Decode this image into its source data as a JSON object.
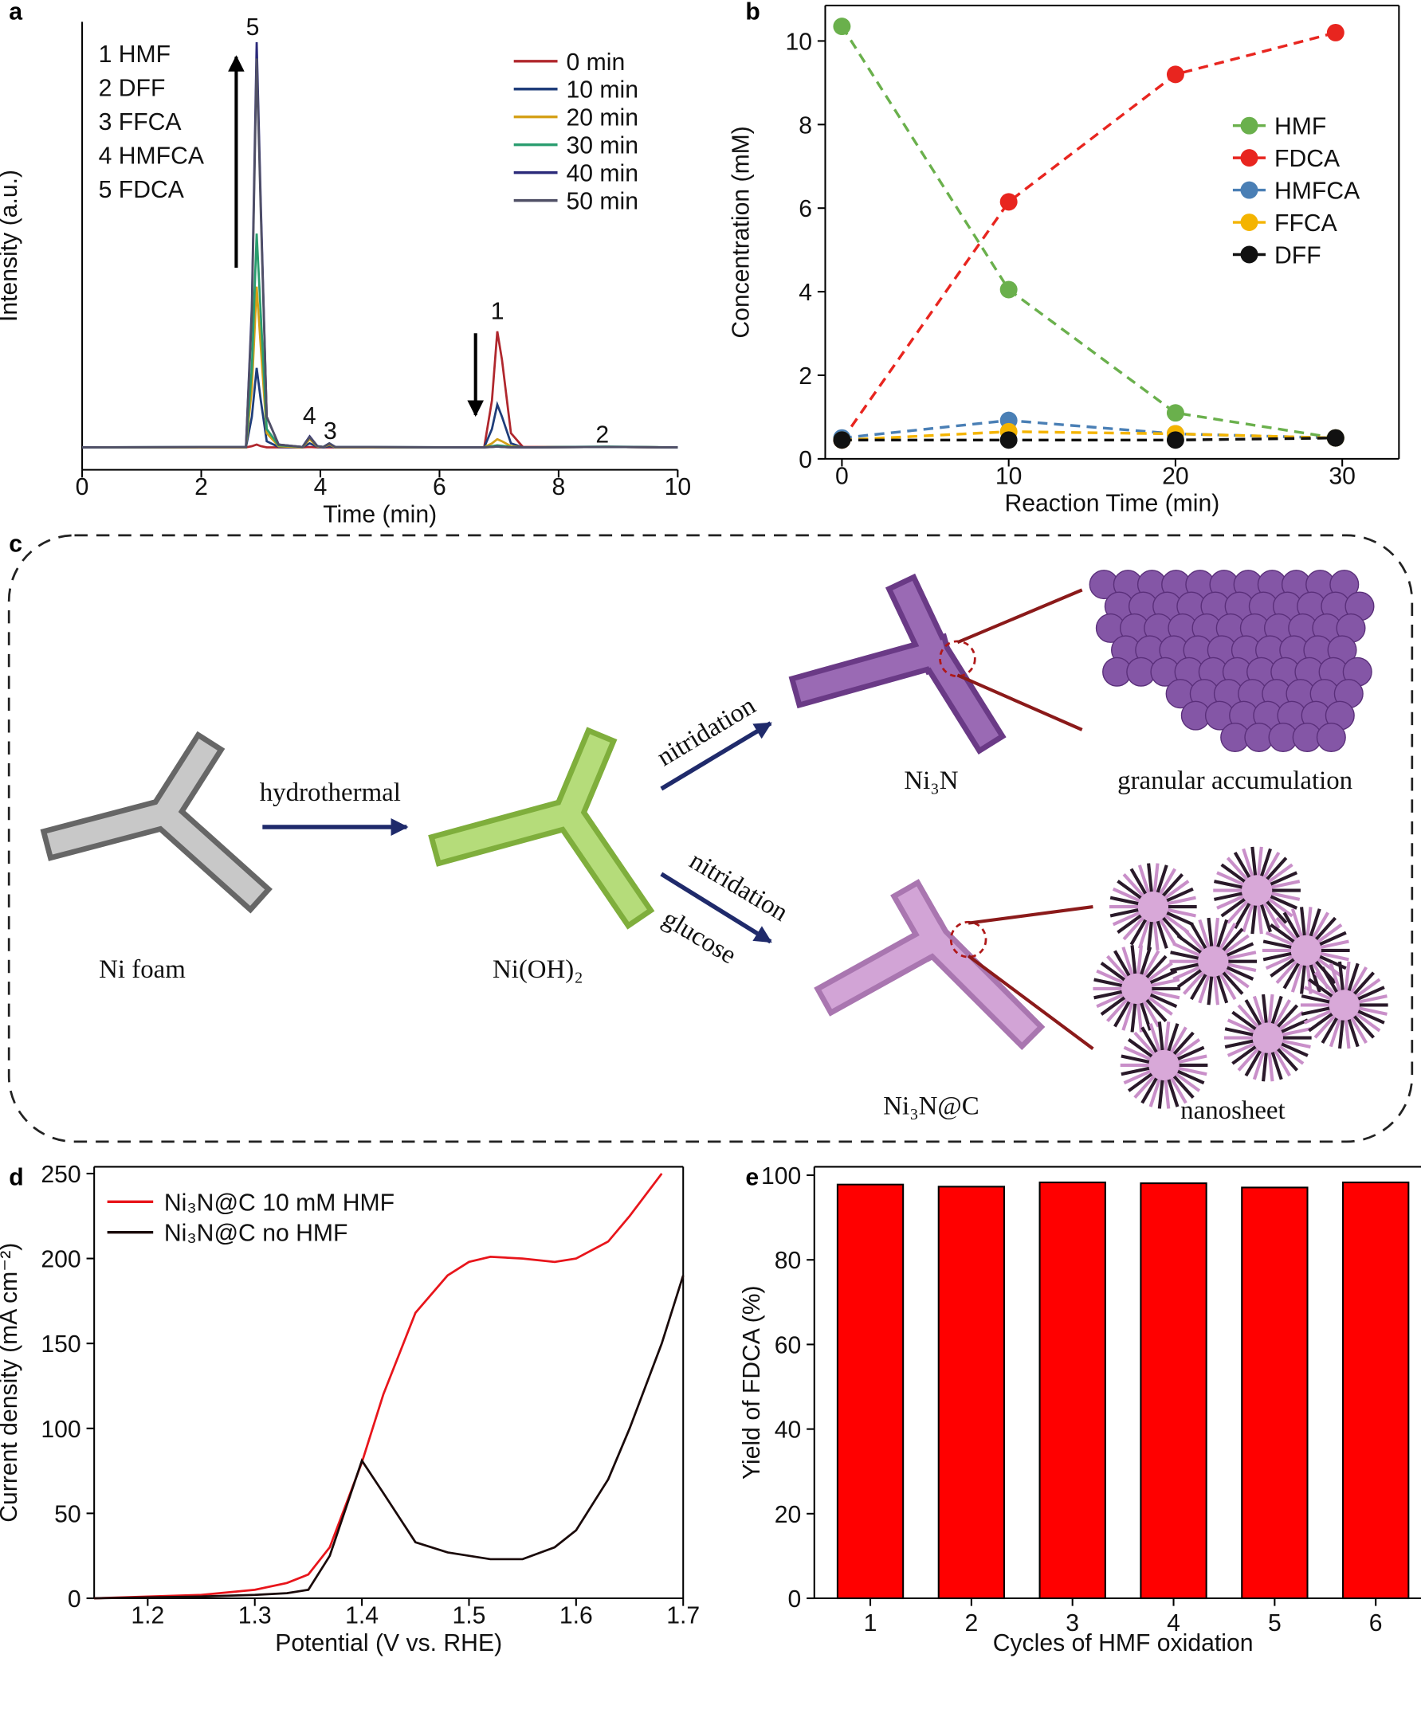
{
  "chart_data": [
    {
      "panel": "a",
      "type": "line",
      "x_label": "Time (min)",
      "y_label": "Intensity (a.u.)",
      "x": [
        0,
        2.75,
        2.85,
        2.93,
        3.0,
        3.1,
        3.3,
        3.7,
        3.82,
        3.95,
        4.05,
        4.15,
        4.25,
        6.75,
        6.88,
        6.97,
        7.05,
        7.2,
        7.4,
        8.8,
        10
      ],
      "series": [
        {
          "name": "0 min",
          "color": "#b0272d",
          "values": [
            0.5,
            0.5,
            0.8,
            1.2,
            0.8,
            0.5,
            0.5,
            0.5,
            0.6,
            0.5,
            0.5,
            0.5,
            0.5,
            0.5,
            12,
            29,
            22,
            4,
            0.6,
            0.6,
            0.5
          ]
        },
        {
          "name": "10 min",
          "color": "#1f3d7a",
          "values": [
            0.5,
            0.5,
            8,
            20,
            12,
            2,
            0.6,
            0.5,
            1.5,
            0.6,
            0.5,
            0.8,
            0.5,
            0.5,
            5,
            11,
            8,
            1.5,
            0.5,
            0.6,
            0.5
          ]
        },
        {
          "name": "20 min",
          "color": "#d4a017",
          "values": [
            0.5,
            0.5,
            15,
            40,
            25,
            4,
            0.8,
            0.5,
            2.5,
            0.7,
            0.6,
            1.2,
            0.5,
            0.5,
            1.5,
            2.5,
            2,
            0.8,
            0.5,
            0.6,
            0.5
          ]
        },
        {
          "name": "30 min",
          "color": "#2a9d6f",
          "values": [
            0.5,
            0.6,
            20,
            53,
            33,
            5,
            1,
            0.6,
            3,
            0.8,
            0.6,
            1.5,
            0.6,
            0.5,
            0.8,
            1,
            0.9,
            0.6,
            0.5,
            0.7,
            0.5
          ]
        },
        {
          "name": "40 min",
          "color": "#2b2a7a",
          "values": [
            0.5,
            0.6,
            35,
            100,
            60,
            8,
            1.2,
            0.6,
            3.2,
            0.8,
            0.6,
            1.5,
            0.6,
            0.5,
            0.6,
            0.7,
            0.6,
            0.5,
            0.5,
            0.6,
            0.5
          ]
        },
        {
          "name": "50 min",
          "color": "#505066",
          "values": [
            0.5,
            0.6,
            33,
            96,
            58,
            8,
            1.2,
            0.6,
            3,
            0.8,
            0.6,
            1.4,
            0.6,
            0.5,
            0.6,
            0.7,
            0.6,
            0.5,
            0.5,
            0.6,
            0.5
          ]
        }
      ],
      "xlim": [
        0,
        10
      ],
      "xticks": [
        0,
        2,
        4,
        6,
        8,
        10
      ],
      "ylim": [
        -5,
        105
      ],
      "peak_labels": [
        "1",
        "2",
        "3",
        "4",
        "5"
      ],
      "compound_list": [
        "1 HMF",
        "2 DFF",
        "3 FFCA",
        "4 HMFCA",
        "5 FDCA"
      ]
    },
    {
      "panel": "b",
      "type": "line",
      "line_style": "dashed",
      "markers": true,
      "x_label": "Reaction Time (min)",
      "y_label": "Concentration (mM)",
      "x": [
        0,
        10,
        20,
        29.6
      ],
      "series": [
        {
          "name": "HMF",
          "color": "#6ab04c",
          "values": [
            10.35,
            4.05,
            1.1,
            0.5
          ]
        },
        {
          "name": "FDCA",
          "color": "#e8251f",
          "values": [
            0.45,
            6.15,
            9.2,
            10.2
          ]
        },
        {
          "name": "HMFCA",
          "color": "#4a7fb5",
          "values": [
            0.5,
            0.92,
            0.6,
            0.5
          ]
        },
        {
          "name": "FFCA",
          "color": "#f4b400",
          "values": [
            0.45,
            0.65,
            0.6,
            0.5
          ]
        },
        {
          "name": "DFF",
          "color": "#111111",
          "values": [
            0.45,
            0.45,
            0.45,
            0.5
          ]
        }
      ],
      "xlim": [
        -1,
        33.4
      ],
      "xticks": [
        0,
        10,
        20,
        30
      ],
      "ylim": [
        0,
        10.85
      ],
      "yticks": [
        0,
        2,
        4,
        6,
        8,
        10
      ]
    },
    {
      "panel": "d",
      "type": "line",
      "x_label": "Potential (V vs. RHE)",
      "y_label": "Current density (mA cm⁻²)",
      "x": [
        1.15,
        1.2,
        1.25,
        1.3,
        1.33,
        1.35,
        1.37,
        1.4,
        1.42,
        1.45,
        1.48,
        1.5,
        1.52,
        1.55,
        1.58,
        1.6,
        1.63,
        1.65,
        1.68,
        1.7
      ],
      "series": [
        {
          "name": "Ni₃N@C 10 mM HMF",
          "color": "#e8151b",
          "values": [
            0,
            1,
            2,
            5,
            9,
            14,
            30,
            80,
            120,
            168,
            190,
            198,
            201,
            200,
            198,
            200,
            210,
            225,
            250,
            null
          ]
        },
        {
          "name": "Ni₃N@C no HMF",
          "color": "#1a0a0a",
          "values": [
            0,
            0.5,
            1,
            2,
            3,
            5,
            25,
            81,
            62,
            33,
            27,
            25,
            23,
            23,
            30,
            40,
            70,
            100,
            150,
            190
          ]
        }
      ],
      "xlim": [
        1.15,
        1.7
      ],
      "xticks": [
        1.2,
        1.3,
        1.4,
        1.5,
        1.6,
        1.7
      ],
      "ylim": [
        0,
        254
      ],
      "yticks": [
        0,
        50,
        100,
        150,
        200,
        250
      ]
    },
    {
      "panel": "e",
      "type": "bar",
      "x_label": "Cycles of HMF oxidation",
      "y_label": "Yield of FDCA (%)",
      "categories": [
        "1",
        "2",
        "3",
        "4",
        "5",
        "6"
      ],
      "values": [
        97.8,
        97.3,
        98.3,
        98.1,
        97.1,
        98.3
      ],
      "color": "#ff0000",
      "ylim": [
        0,
        102
      ],
      "yticks": [
        0,
        20,
        40,
        60,
        80,
        100
      ]
    }
  ],
  "diagram": {
    "panel": "c",
    "arrow_labels": [
      "hydrothermal",
      "nitridation",
      "nitridation",
      "glucose"
    ],
    "materials": [
      "Ni foam",
      "Ni(OH)₂",
      "Ni₃N",
      "Ni₃N@C"
    ],
    "morphologies": [
      "granular accumulation",
      "nanosheet"
    ]
  }
}
